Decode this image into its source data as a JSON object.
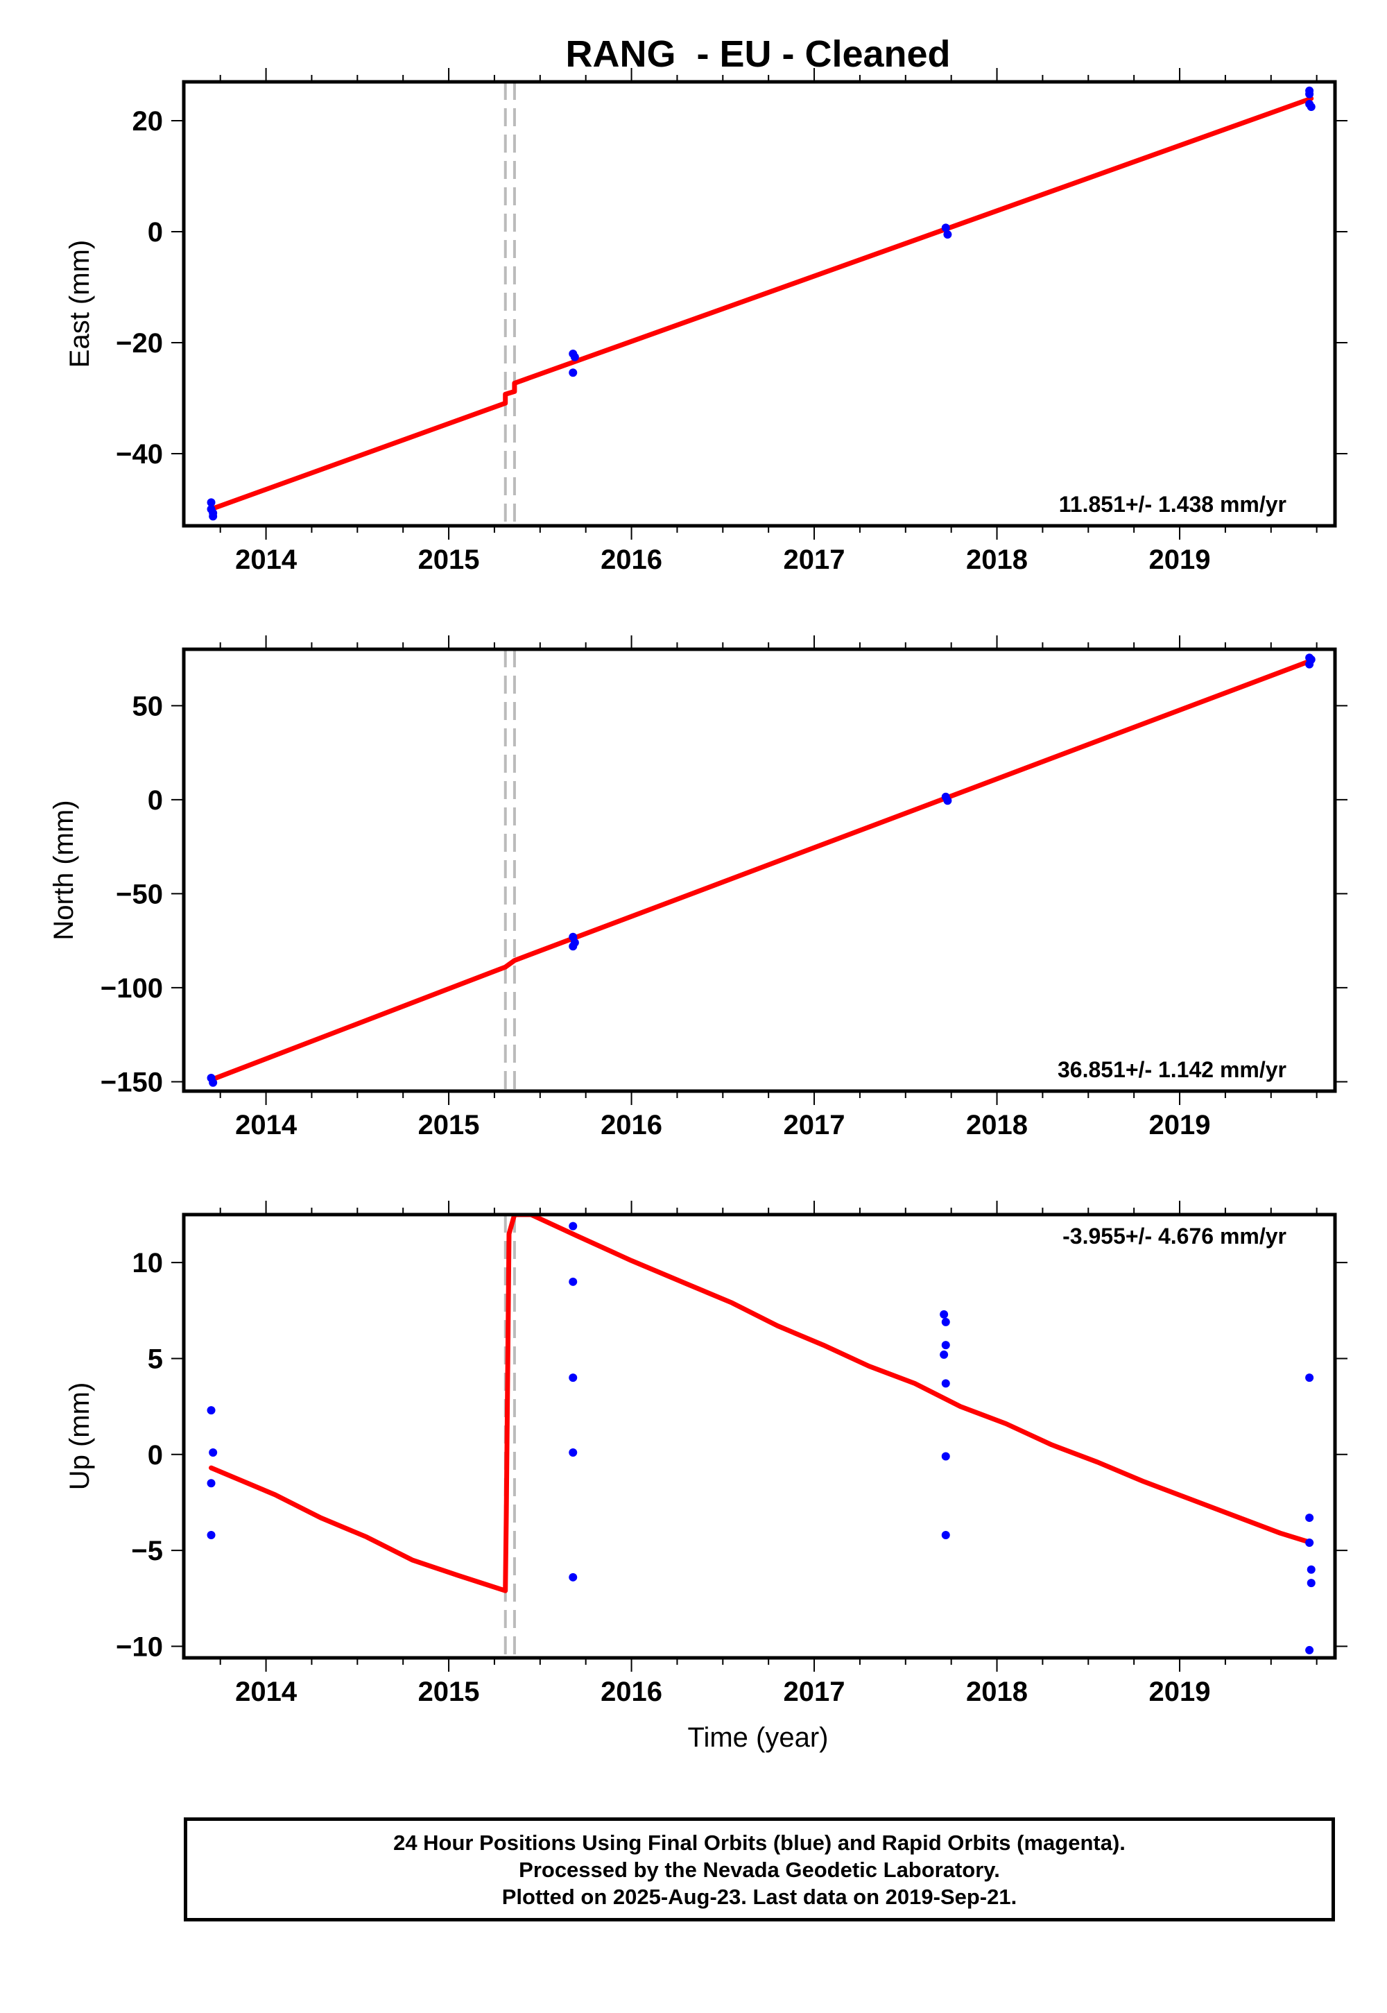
{
  "title": "RANG  - EU - Cleaned",
  "xlabel": "Time (year)",
  "footer": {
    "line1": "24 Hour Positions Using Final Orbits (blue) and Rapid Orbits (magenta).",
    "line2": "Processed by the Nevada Geodetic Laboratory.",
    "line3": "Plotted on 2025-Aug-23. Last data on 2019-Sep-21."
  },
  "colors": {
    "fit": "#ff0000",
    "final_orbits": "#0000ff",
    "equipment_change": "#bbbbbb",
    "frame": "#000000"
  },
  "chart_data": [
    {
      "type": "scatter",
      "ylabel": "East (mm)",
      "rate_label": "11.851+/- 1.438 mm/yr",
      "xlim": [
        2013.55,
        2019.85
      ],
      "ylim": [
        -53,
        27
      ],
      "x_ticks": [
        2014,
        2015,
        2016,
        2017,
        2018,
        2019
      ],
      "y_ticks": [
        20,
        0,
        -20,
        -40
      ],
      "y_tick_labels": [
        "20",
        "0",
        "−20",
        "−40"
      ],
      "equipment_changes": [
        2015.31,
        2015.36
      ],
      "series": [
        {
          "style": "points",
          "x": [
            2013.7,
            2013.7,
            2013.71,
            2013.71,
            2015.68,
            2015.69,
            2015.68,
            2017.72,
            2017.73,
            2019.71,
            2019.71,
            2019.71,
            2019.72
          ],
          "y": [
            -48.8,
            -50.0,
            -50.7,
            -51.3,
            -22.0,
            -22.6,
            -25.4,
            0.7,
            -0.5,
            25.4,
            24.8,
            23.0,
            22.5
          ]
        },
        {
          "style": "line",
          "x": [
            2013.7,
            2015.31,
            2015.31,
            2015.36,
            2015.36,
            2019.72
          ],
          "y": [
            -50.0,
            -30.9,
            -29.3,
            -28.8,
            -27.3,
            24.0
          ]
        }
      ]
    },
    {
      "type": "scatter",
      "ylabel": "North (mm)",
      "rate_label": "36.851+/- 1.142 mm/yr",
      "xlim": [
        2013.55,
        2019.85
      ],
      "ylim": [
        -155,
        80
      ],
      "x_ticks": [
        2014,
        2015,
        2016,
        2017,
        2018,
        2019
      ],
      "y_ticks": [
        50,
        0,
        -50,
        -100,
        -150
      ],
      "y_tick_labels": [
        "50",
        "0",
        "−50",
        "−100",
        "−150"
      ],
      "equipment_changes": [
        2015.31,
        2015.36
      ],
      "series": [
        {
          "style": "points",
          "x": [
            2013.7,
            2013.71,
            2015.68,
            2015.69,
            2015.68,
            2017.72,
            2017.73,
            2019.71,
            2019.72,
            2019.71
          ],
          "y": [
            -148.0,
            -150.5,
            -73.0,
            -76.0,
            -78.0,
            1.5,
            -0.5,
            72.0,
            74.5,
            75.5
          ]
        },
        {
          "style": "line",
          "x": [
            2013.7,
            2015.31,
            2015.36,
            2019.72
          ],
          "y": [
            -149.0,
            -89.0,
            -85.5,
            74.0
          ]
        }
      ]
    },
    {
      "type": "scatter",
      "ylabel": "Up (mm)",
      "rate_label": "-3.955+/- 4.676 mm/yr",
      "xlim": [
        2013.55,
        2019.85
      ],
      "ylim": [
        -10.6,
        12.5
      ],
      "x_ticks": [
        2014,
        2015,
        2016,
        2017,
        2018,
        2019
      ],
      "y_ticks": [
        10,
        5,
        0,
        -5,
        -10
      ],
      "y_tick_labels": [
        "10",
        "5",
        "0",
        "−5",
        "−10"
      ],
      "equipment_changes": [
        2015.31,
        2015.36
      ],
      "series": [
        {
          "style": "points",
          "x": [
            2013.7,
            2013.71,
            2013.7,
            2013.7,
            2015.68,
            2015.68,
            2015.68,
            2015.68,
            2015.68,
            2017.71,
            2017.72,
            2017.72,
            2017.71,
            2017.72,
            2017.72,
            2017.72,
            2019.71,
            2019.71,
            2019.72,
            2019.72,
            2019.71,
            2019.71
          ],
          "y": [
            2.3,
            0.1,
            -1.5,
            -4.2,
            11.9,
            9.0,
            4.0,
            0.1,
            -6.4,
            7.3,
            6.9,
            5.7,
            5.2,
            3.7,
            -0.1,
            -4.2,
            4.0,
            -3.3,
            -6.0,
            -6.7,
            -4.6,
            -10.2
          ]
        },
        {
          "style": "line",
          "x": [
            2013.7,
            2014.05,
            2014.3,
            2014.55,
            2014.8,
            2015.05,
            2015.31,
            2015.315,
            2015.33,
            2015.36,
            2015.45,
            2015.7,
            2016.0,
            2016.3,
            2016.55,
            2016.8,
            2017.05,
            2017.3,
            2017.55,
            2017.8,
            2018.05,
            2018.3,
            2018.55,
            2018.8,
            2019.05,
            2019.3,
            2019.55,
            2019.72
          ],
          "y": [
            -0.7,
            -2.1,
            -3.3,
            -4.3,
            -5.5,
            -6.3,
            -7.1,
            -3.0,
            11.5,
            12.5,
            12.5,
            11.4,
            10.1,
            8.9,
            7.9,
            6.7,
            5.7,
            4.6,
            3.7,
            2.5,
            1.6,
            0.5,
            -0.4,
            -1.4,
            -2.3,
            -3.2,
            -4.1,
            -4.6
          ]
        }
      ]
    }
  ]
}
